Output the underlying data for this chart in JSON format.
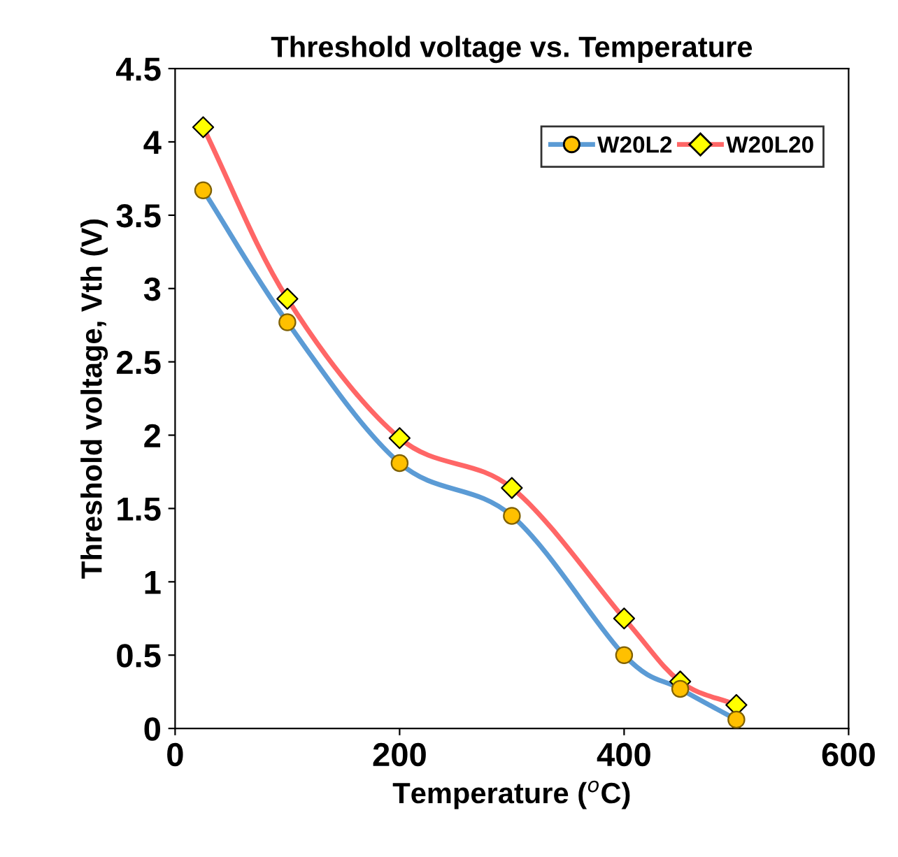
{
  "chart_data": {
    "type": "line",
    "title": "Threshold voltage vs. Temperature",
    "xlabel": "Temperature ($^{o}$C)",
    "ylabel": "Threshold voltage, Vth (V)",
    "x": [
      25,
      100,
      200,
      300,
      400,
      450,
      500
    ],
    "series": [
      {
        "name": "W20L2",
        "color": "#5b9bd5",
        "marker": "circle",
        "colors": [
          "#ffc000",
          "#ffc000",
          "#ffc000",
          "#ffc000",
          "#ffc000",
          "#ffc000",
          "#ffc000"
        ],
        "values": [
          3.67,
          2.77,
          1.81,
          1.45,
          0.5,
          0.27,
          0.06
        ]
      },
      {
        "name": "W20L20",
        "color": "#ff6666",
        "marker": "diamond",
        "colors": [
          "#ffff00",
          "#ffff00",
          "#ffff00",
          "#ffff00",
          "#ffff00",
          "#ffff00",
          "#ffff00"
        ],
        "values": [
          4.1,
          2.93,
          1.98,
          1.64,
          0.75,
          0.32,
          0.16
        ]
      }
    ],
    "xlim": [
      0,
      600
    ],
    "xticks": [
      0,
      200,
      400,
      600
    ],
    "ylim": [
      0,
      4.5
    ],
    "yticks": [
      0,
      0.5,
      1,
      1.5,
      2,
      2.5,
      3,
      3.5,
      4,
      4.5
    ],
    "grid": false,
    "legend": "top right",
    "line_style": "solid"
  }
}
